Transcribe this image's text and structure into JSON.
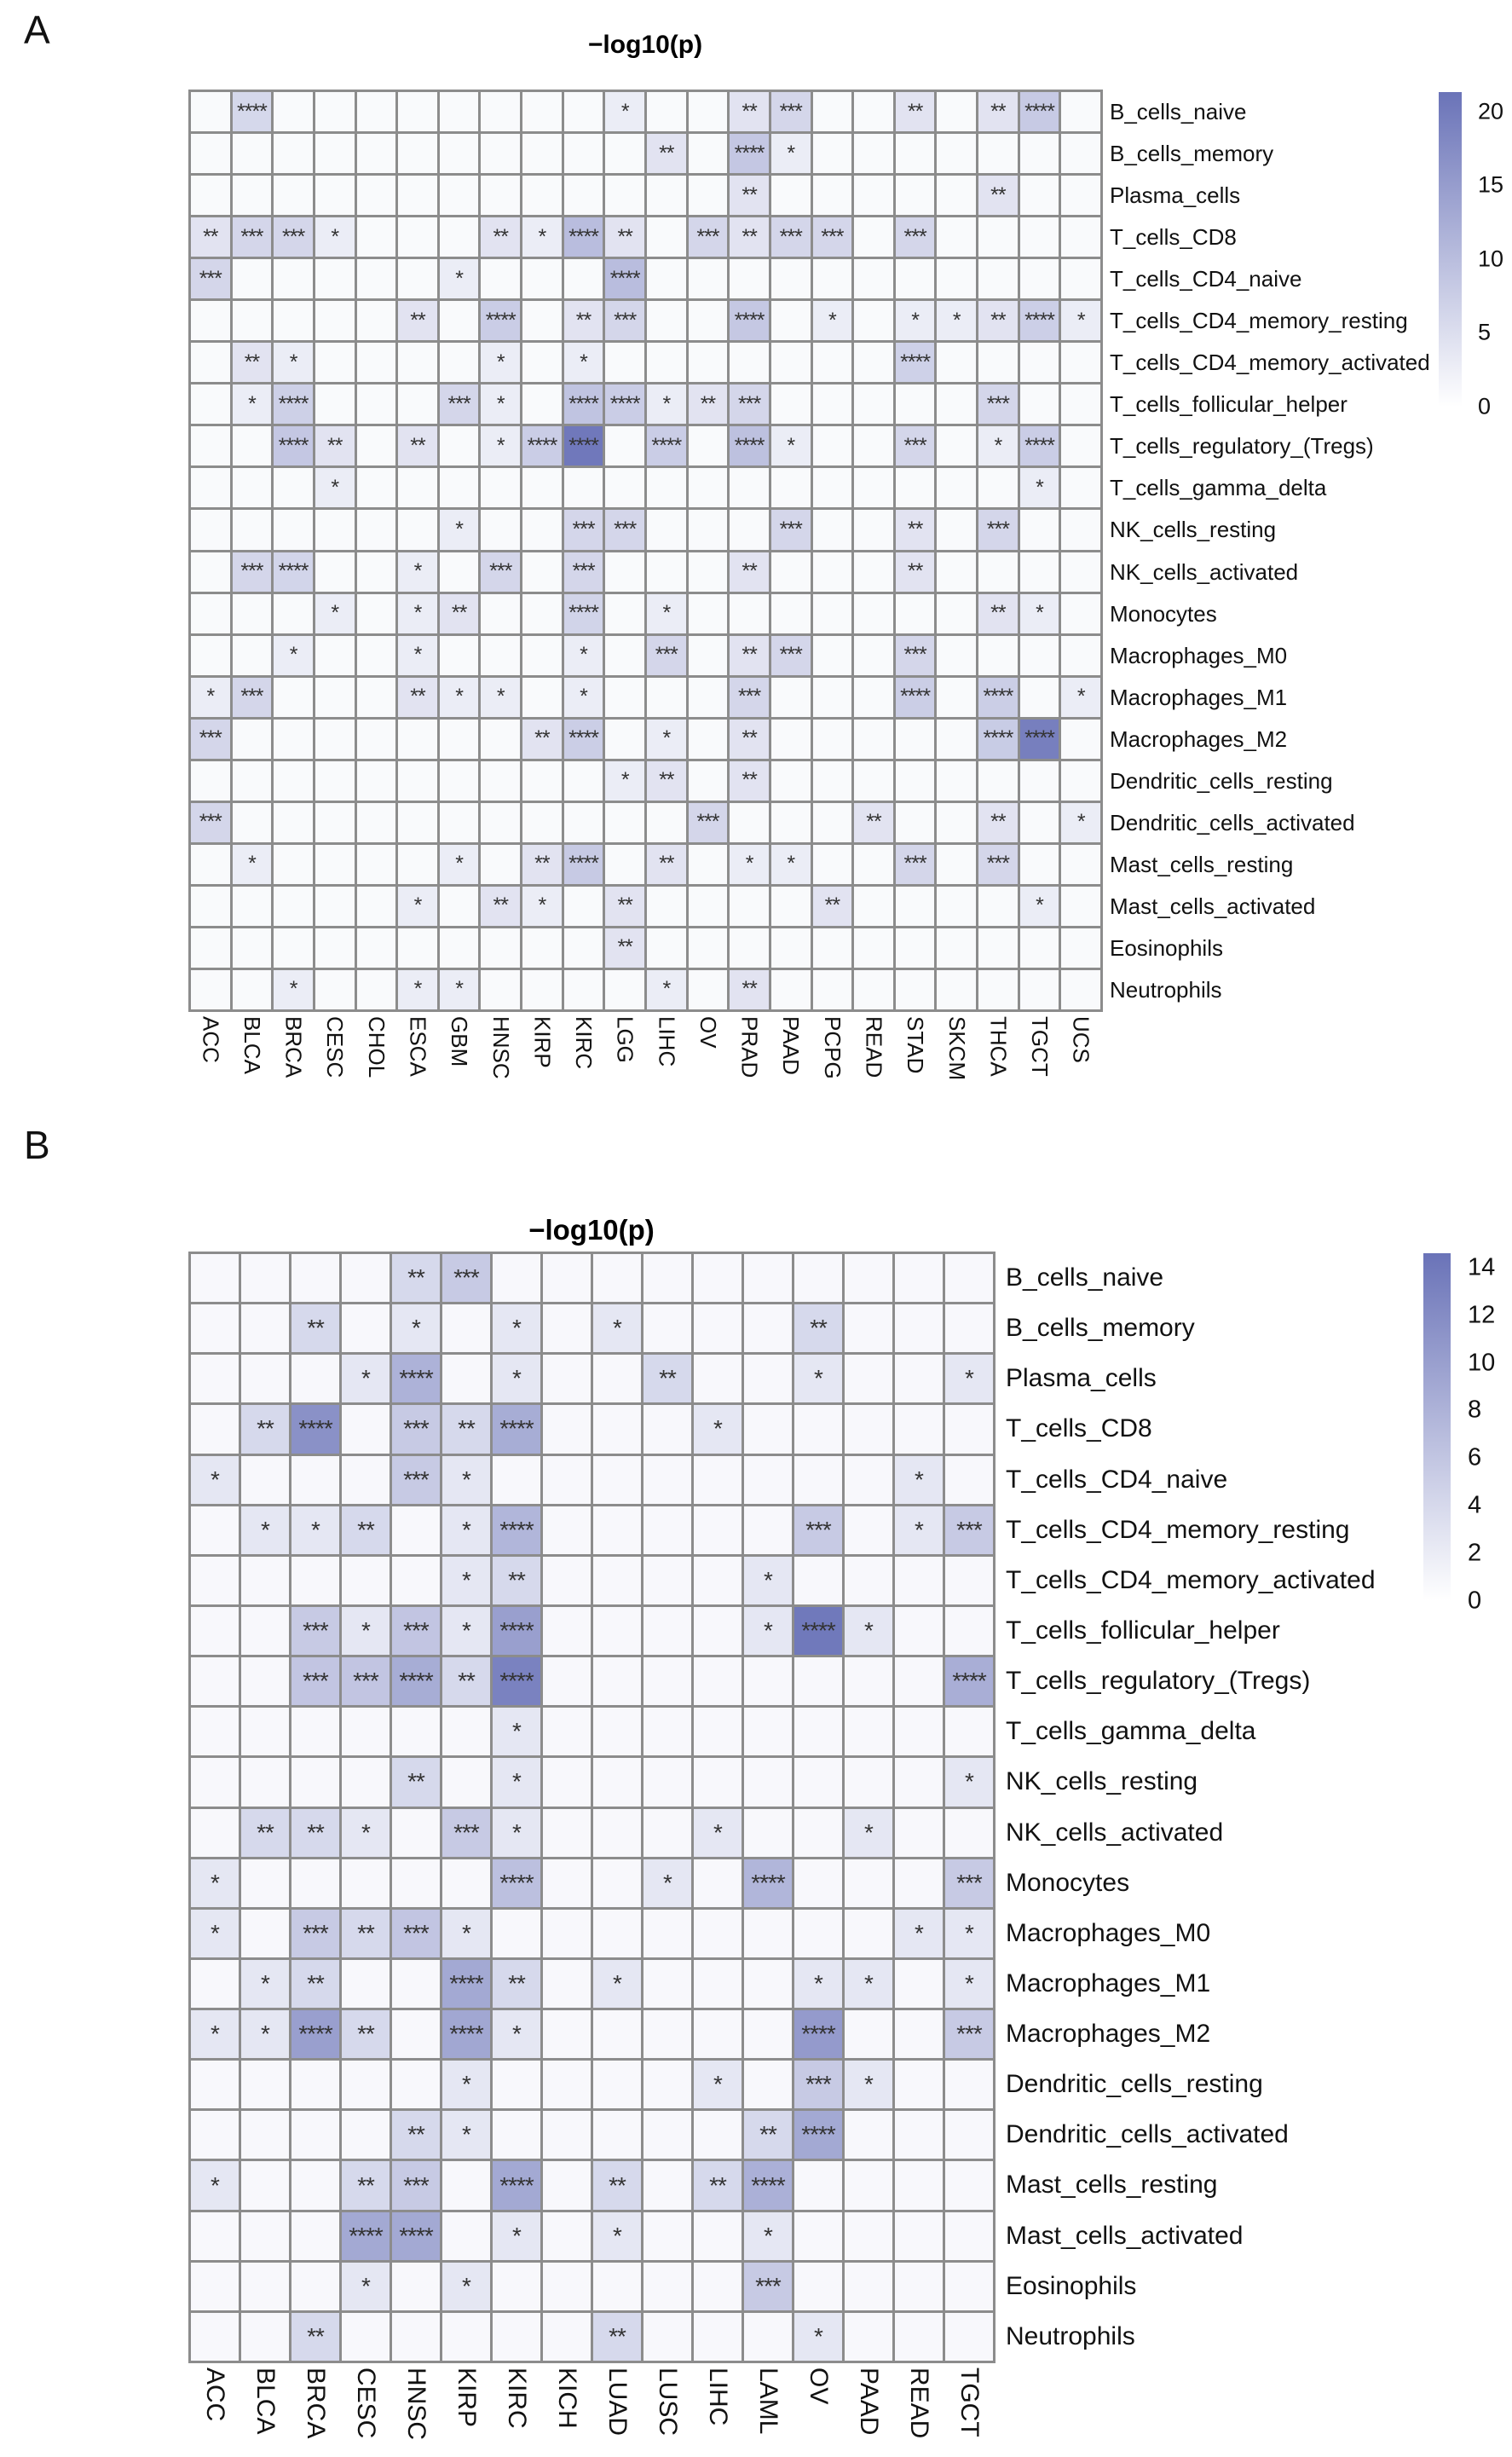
{
  "chart_data": [
    {
      "type": "heatmap",
      "panel_label": "A",
      "title": "−log10(p)",
      "xlabel": "",
      "ylabel": "",
      "legend_position": "right",
      "columns": [
        "ACC",
        "BLCA",
        "BRCA",
        "CESC",
        "CHOL",
        "ESCA",
        "GBM",
        "HNSC",
        "KIRP",
        "KIRC",
        "LGG",
        "LIHC",
        "OV",
        "PRAD",
        "PAAD",
        "PCPG",
        "READ",
        "STAD",
        "SKCM",
        "THCA",
        "TGCT",
        "UCS"
      ],
      "rows": [
        "B_cells_naive",
        "B_cells_memory",
        "Plasma_cells",
        "T_cells_CD8",
        "T_cells_CD4_naive",
        "T_cells_CD4_memory_resting",
        "T_cells_CD4_memory_activated",
        "T_cells_follicular_helper",
        "T_cells_regulatory_(Tregs)",
        "T_cells_gamma_delta",
        "NK_cells_resting",
        "NK_cells_activated",
        "Monocytes",
        "Macrophages_M0",
        "Macrophages_M1",
        "Macrophages_M2",
        "Dendritic_cells_resting",
        "Dendritic_cells_activated",
        "Mast_cells_resting",
        "Mast_cells_activated",
        "Eosinophils",
        "Neutrophils"
      ],
      "stars": [
        [
          "",
          "****",
          "",
          "",
          "",
          "",
          "",
          "",
          "",
          "",
          "*",
          "",
          "",
          "**",
          "***",
          "",
          "",
          "**",
          "",
          "**",
          "****",
          ""
        ],
        [
          "",
          "",
          "",
          "",
          "",
          "",
          "",
          "",
          "",
          "",
          "",
          "**",
          "",
          "****",
          "*",
          "",
          "",
          "",
          "",
          "",
          "",
          ""
        ],
        [
          "",
          "",
          "",
          "",
          "",
          "",
          "",
          "",
          "",
          "",
          "",
          "",
          "",
          "**",
          "",
          "",
          "",
          "",
          "",
          "**",
          "",
          ""
        ],
        [
          "**",
          "***",
          "***",
          "*",
          "",
          "",
          "",
          "**",
          "*",
          "****",
          "**",
          "",
          "***",
          "**",
          "***",
          "***",
          "",
          "***",
          "",
          "",
          "",
          ""
        ],
        [
          "***",
          "",
          "",
          "",
          "",
          "",
          "*",
          "",
          "",
          "",
          "****",
          "",
          "",
          "",
          "",
          "",
          "",
          "",
          "",
          "",
          "",
          ""
        ],
        [
          "",
          "",
          "",
          "",
          "",
          "**",
          "",
          "****",
          "",
          "**",
          "***",
          "",
          "",
          "****",
          "",
          "*",
          "",
          "*",
          "*",
          "**",
          "****",
          "*"
        ],
        [
          "",
          "**",
          "*",
          "",
          "",
          "",
          "",
          "*",
          "",
          "*",
          "",
          "",
          "",
          "",
          "",
          "",
          "",
          "****",
          "",
          "",
          "",
          ""
        ],
        [
          "",
          "*",
          "****",
          "",
          "",
          "",
          "***",
          "*",
          "",
          "****",
          "****",
          "*",
          "**",
          "***",
          "",
          "",
          "",
          "",
          "",
          "***",
          "",
          ""
        ],
        [
          "",
          "",
          "****",
          "**",
          "",
          "**",
          "",
          "*",
          "****",
          "****",
          "",
          "****",
          "",
          "****",
          "*",
          "",
          "",
          "***",
          "",
          "*",
          "****",
          ""
        ],
        [
          "",
          "",
          "",
          "*",
          "",
          "",
          "",
          "",
          "",
          "",
          "",
          "",
          "",
          "",
          "",
          "",
          "",
          "",
          "",
          "",
          "*",
          ""
        ],
        [
          "",
          "",
          "",
          "",
          "",
          "",
          "*",
          "",
          "",
          "***",
          "***",
          "",
          "",
          "",
          "***",
          "",
          "",
          "**",
          "",
          "***",
          "",
          ""
        ],
        [
          "",
          "***",
          "****",
          "",
          "",
          "*",
          "",
          "***",
          "",
          "***",
          "",
          "",
          "",
          "**",
          "",
          "",
          "",
          "**",
          "",
          "",
          "",
          ""
        ],
        [
          "",
          "",
          "",
          "*",
          "",
          "*",
          "**",
          "",
          "",
          "****",
          "",
          "*",
          "",
          "",
          "",
          "",
          "",
          "",
          "",
          "**",
          "*",
          ""
        ],
        [
          "",
          "",
          "*",
          "",
          "",
          "*",
          "",
          "",
          "",
          "*",
          "",
          "***",
          "",
          "**",
          "***",
          "",
          "",
          "***",
          "",
          "",
          "",
          ""
        ],
        [
          "*",
          "***",
          "",
          "",
          "",
          "**",
          "*",
          "*",
          "",
          "*",
          "",
          "",
          "",
          "***",
          "",
          "",
          "",
          "****",
          "",
          "****",
          "",
          "*"
        ],
        [
          "***",
          "",
          "",
          "",
          "",
          "",
          "",
          "",
          "**",
          "****",
          "",
          "*",
          "",
          "**",
          "",
          "",
          "",
          "",
          "",
          "****",
          "****",
          ""
        ],
        [
          "",
          "",
          "",
          "",
          "",
          "",
          "",
          "",
          "",
          "",
          "*",
          "**",
          "",
          "**",
          "",
          "",
          "",
          "",
          "",
          "",
          "",
          ""
        ],
        [
          "***",
          "",
          "",
          "",
          "",
          "",
          "",
          "",
          "",
          "",
          "",
          "",
          "***",
          "",
          "",
          "",
          "**",
          "",
          "",
          "**",
          "",
          "*"
        ],
        [
          "",
          "*",
          "",
          "",
          "",
          "",
          "*",
          "",
          "**",
          "****",
          "",
          "**",
          "",
          "*",
          "*",
          "",
          "",
          "***",
          "",
          "***",
          "",
          ""
        ],
        [
          "",
          "",
          "",
          "",
          "",
          "*",
          "",
          "**",
          "*",
          "",
          "**",
          "",
          "",
          "",
          "",
          "**",
          "",
          "",
          "",
          "",
          "*",
          ""
        ],
        [
          "",
          "",
          "",
          "",
          "",
          "",
          "",
          "",
          "",
          "",
          "**",
          "",
          "",
          "",
          "",
          "",
          "",
          "",
          "",
          "",
          "",
          ""
        ],
        [
          "",
          "",
          "*",
          "",
          "",
          "*",
          "*",
          "",
          "",
          "",
          "",
          "*",
          "",
          "**",
          "",
          "",
          "",
          "",
          "",
          "",
          "",
          ""
        ]
      ],
      "star_value_map": {
        "": 0.8,
        "*": 2.8,
        "**": 4.2,
        "***": 6.2,
        "****": 8.5
      },
      "value_overrides": [
        [
          8,
          9,
          20.5
        ],
        [
          15,
          20,
          19.5
        ],
        [
          3,
          9,
          10
        ],
        [
          4,
          10,
          10
        ],
        [
          1,
          13,
          8.5
        ],
        [
          0,
          20,
          8
        ],
        [
          0,
          1,
          6
        ],
        [
          8,
          13,
          9.5
        ],
        [
          7,
          9,
          9
        ],
        [
          5,
          13,
          8.3
        ],
        [
          8,
          8,
          7.6
        ],
        [
          8,
          11,
          7.6
        ],
        [
          8,
          20,
          7.6
        ],
        [
          5,
          7,
          7.6
        ],
        [
          5,
          20,
          7.3
        ],
        [
          6,
          17,
          7
        ],
        [
          7,
          2,
          7.2
        ],
        [
          7,
          10,
          7.6
        ],
        [
          14,
          17,
          7.4
        ],
        [
          14,
          19,
          7.4
        ],
        [
          18,
          9,
          8
        ],
        [
          12,
          9,
          6.6
        ],
        [
          11,
          2,
          6.4
        ],
        [
          15,
          9,
          7.4
        ],
        [
          15,
          19,
          7.8
        ]
      ],
      "colorbar": {
        "ticks": [
          20,
          15,
          10,
          5,
          0
        ],
        "scale_max": 21.3,
        "min_color": "#ffffff",
        "max_color": "#6a73b8"
      }
    },
    {
      "type": "heatmap",
      "panel_label": "B",
      "title": "−log10(p)",
      "xlabel": "",
      "ylabel": "",
      "legend_position": "right",
      "columns": [
        "ACC",
        "BLCA",
        "BRCA",
        "CESC",
        "HNSC",
        "KIRP",
        "KIRC",
        "KICH",
        "LUAD",
        "LUSC",
        "LIHC",
        "LAML",
        "OV",
        "PAAD",
        "READ",
        "TGCT"
      ],
      "rows": [
        "B_cells_naive",
        "B_cells_memory",
        "Plasma_cells",
        "T_cells_CD8",
        "T_cells_CD4_naive",
        "T_cells_CD4_memory_resting",
        "T_cells_CD4_memory_activated",
        "T_cells_follicular_helper",
        "T_cells_regulatory_(Tregs)",
        "T_cells_gamma_delta",
        "NK_cells_resting",
        "NK_cells_activated",
        "Monocytes",
        "Macrophages_M0",
        "Macrophages_M1",
        "Macrophages_M2",
        "Dendritic_cells_resting",
        "Dendritic_cells_activated",
        "Mast_cells_resting",
        "Mast_cells_activated",
        "Eosinophils",
        "Neutrophils"
      ],
      "stars": [
        [
          "",
          "",
          "",
          "",
          "**",
          "***",
          "",
          "",
          "",
          "",
          "",
          "",
          "",
          "",
          "",
          ""
        ],
        [
          "",
          "",
          "**",
          "",
          "*",
          "",
          "*",
          "",
          "*",
          "",
          "",
          "",
          "**",
          "",
          "",
          ""
        ],
        [
          "",
          "",
          "",
          "*",
          "****",
          "",
          "*",
          "",
          "",
          "**",
          "",
          "",
          "*",
          "",
          "",
          "*"
        ],
        [
          "",
          "**",
          "****",
          "",
          "***",
          "**",
          "****",
          "",
          "",
          "",
          "*",
          "",
          "",
          "",
          "",
          ""
        ],
        [
          "*",
          "",
          "",
          "",
          "***",
          "*",
          "",
          "",
          "",
          "",
          "",
          "",
          "",
          "",
          "*",
          ""
        ],
        [
          "",
          "*",
          "*",
          "**",
          "",
          "*",
          "****",
          "",
          "",
          "",
          "",
          "",
          "***",
          "",
          "*",
          "***"
        ],
        [
          "",
          "",
          "",
          "",
          "",
          "*",
          "**",
          "",
          "",
          "",
          "",
          "*",
          "",
          "",
          "",
          ""
        ],
        [
          "",
          "",
          "***",
          "*",
          "***",
          "*",
          "****",
          "",
          "",
          "",
          "",
          "*",
          "****",
          "*",
          "",
          ""
        ],
        [
          "",
          "",
          "***",
          "***",
          "****",
          "**",
          "****",
          "",
          "",
          "",
          "",
          "",
          "",
          "",
          "",
          "****"
        ],
        [
          "",
          "",
          "",
          "",
          "",
          "",
          "*",
          "",
          "",
          "",
          "",
          "",
          "",
          "",
          "",
          ""
        ],
        [
          "",
          "",
          "",
          "",
          "**",
          "",
          "*",
          "",
          "",
          "",
          "",
          "",
          "",
          "",
          "",
          "*"
        ],
        [
          "",
          "**",
          "**",
          "*",
          "",
          "***",
          "*",
          "",
          "",
          "",
          "*",
          "",
          "",
          "*",
          "",
          ""
        ],
        [
          "*",
          "",
          "",
          "",
          "",
          "",
          "****",
          "",
          "",
          "*",
          "",
          "****",
          "",
          "",
          "",
          "***"
        ],
        [
          "*",
          "",
          "***",
          "**",
          "***",
          "*",
          "",
          "",
          "",
          "",
          "",
          "",
          "",
          "",
          "*",
          "*"
        ],
        [
          "",
          "*",
          "**",
          "",
          "",
          "****",
          "**",
          "",
          "*",
          "",
          "",
          "",
          "*",
          "*",
          "",
          "*"
        ],
        [
          "*",
          "*",
          "****",
          "**",
          "",
          "****",
          "*",
          "",
          "",
          "",
          "",
          "",
          "****",
          "",
          "",
          "***"
        ],
        [
          "",
          "",
          "",
          "",
          "",
          "*",
          "",
          "",
          "",
          "",
          "*",
          "",
          "***",
          "*",
          "",
          ""
        ],
        [
          "",
          "",
          "",
          "",
          "**",
          "*",
          "",
          "",
          "",
          "",
          "",
          "**",
          "****",
          "",
          "",
          ""
        ],
        [
          "*",
          "",
          "",
          "**",
          "***",
          "",
          "****",
          "",
          "**",
          "",
          "**",
          "****",
          "",
          "",
          "",
          ""
        ],
        [
          "",
          "",
          "",
          "****",
          "****",
          "",
          "*",
          "",
          "*",
          "",
          "",
          "*",
          "",
          "",
          "",
          ""
        ],
        [
          "",
          "",
          "",
          "*",
          "",
          "*",
          "",
          "",
          "",
          "",
          "",
          "***",
          "",
          "",
          "",
          ""
        ],
        [
          "",
          "",
          "**",
          "",
          "",
          "",
          "",
          "",
          "**",
          "",
          "",
          "",
          "*",
          "",
          "",
          ""
        ]
      ],
      "star_value_map": {
        "": 0.7,
        "*": 2.5,
        "**": 4,
        "***": 5.5,
        "****": 8
      },
      "value_overrides": [
        [
          7,
          12,
          14
        ],
        [
          8,
          6,
          13
        ],
        [
          3,
          2,
          11.5
        ],
        [
          15,
          12,
          10.5
        ],
        [
          7,
          6,
          10
        ],
        [
          15,
          2,
          10
        ],
        [
          15,
          5,
          9.2
        ],
        [
          14,
          5,
          9
        ],
        [
          19,
          3,
          9
        ],
        [
          19,
          4,
          9
        ],
        [
          18,
          6,
          9
        ],
        [
          17,
          12,
          9
        ],
        [
          8,
          4,
          8.6
        ],
        [
          8,
          15,
          8.4
        ],
        [
          12,
          11,
          7.6
        ],
        [
          18,
          11,
          8.2
        ],
        [
          2,
          4,
          8
        ],
        [
          3,
          6,
          8.6
        ],
        [
          5,
          6,
          7.6
        ],
        [
          12,
          6,
          6.6
        ],
        [
          13,
          4,
          6
        ],
        [
          7,
          4,
          6
        ],
        [
          8,
          2,
          6
        ],
        [
          8,
          3,
          6
        ]
      ],
      "colorbar": {
        "ticks": [
          14,
          12,
          10,
          8,
          6,
          4,
          2,
          0
        ],
        "scale_max": 14.6,
        "min_color": "#ffffff",
        "max_color": "#6a73b8"
      }
    }
  ]
}
